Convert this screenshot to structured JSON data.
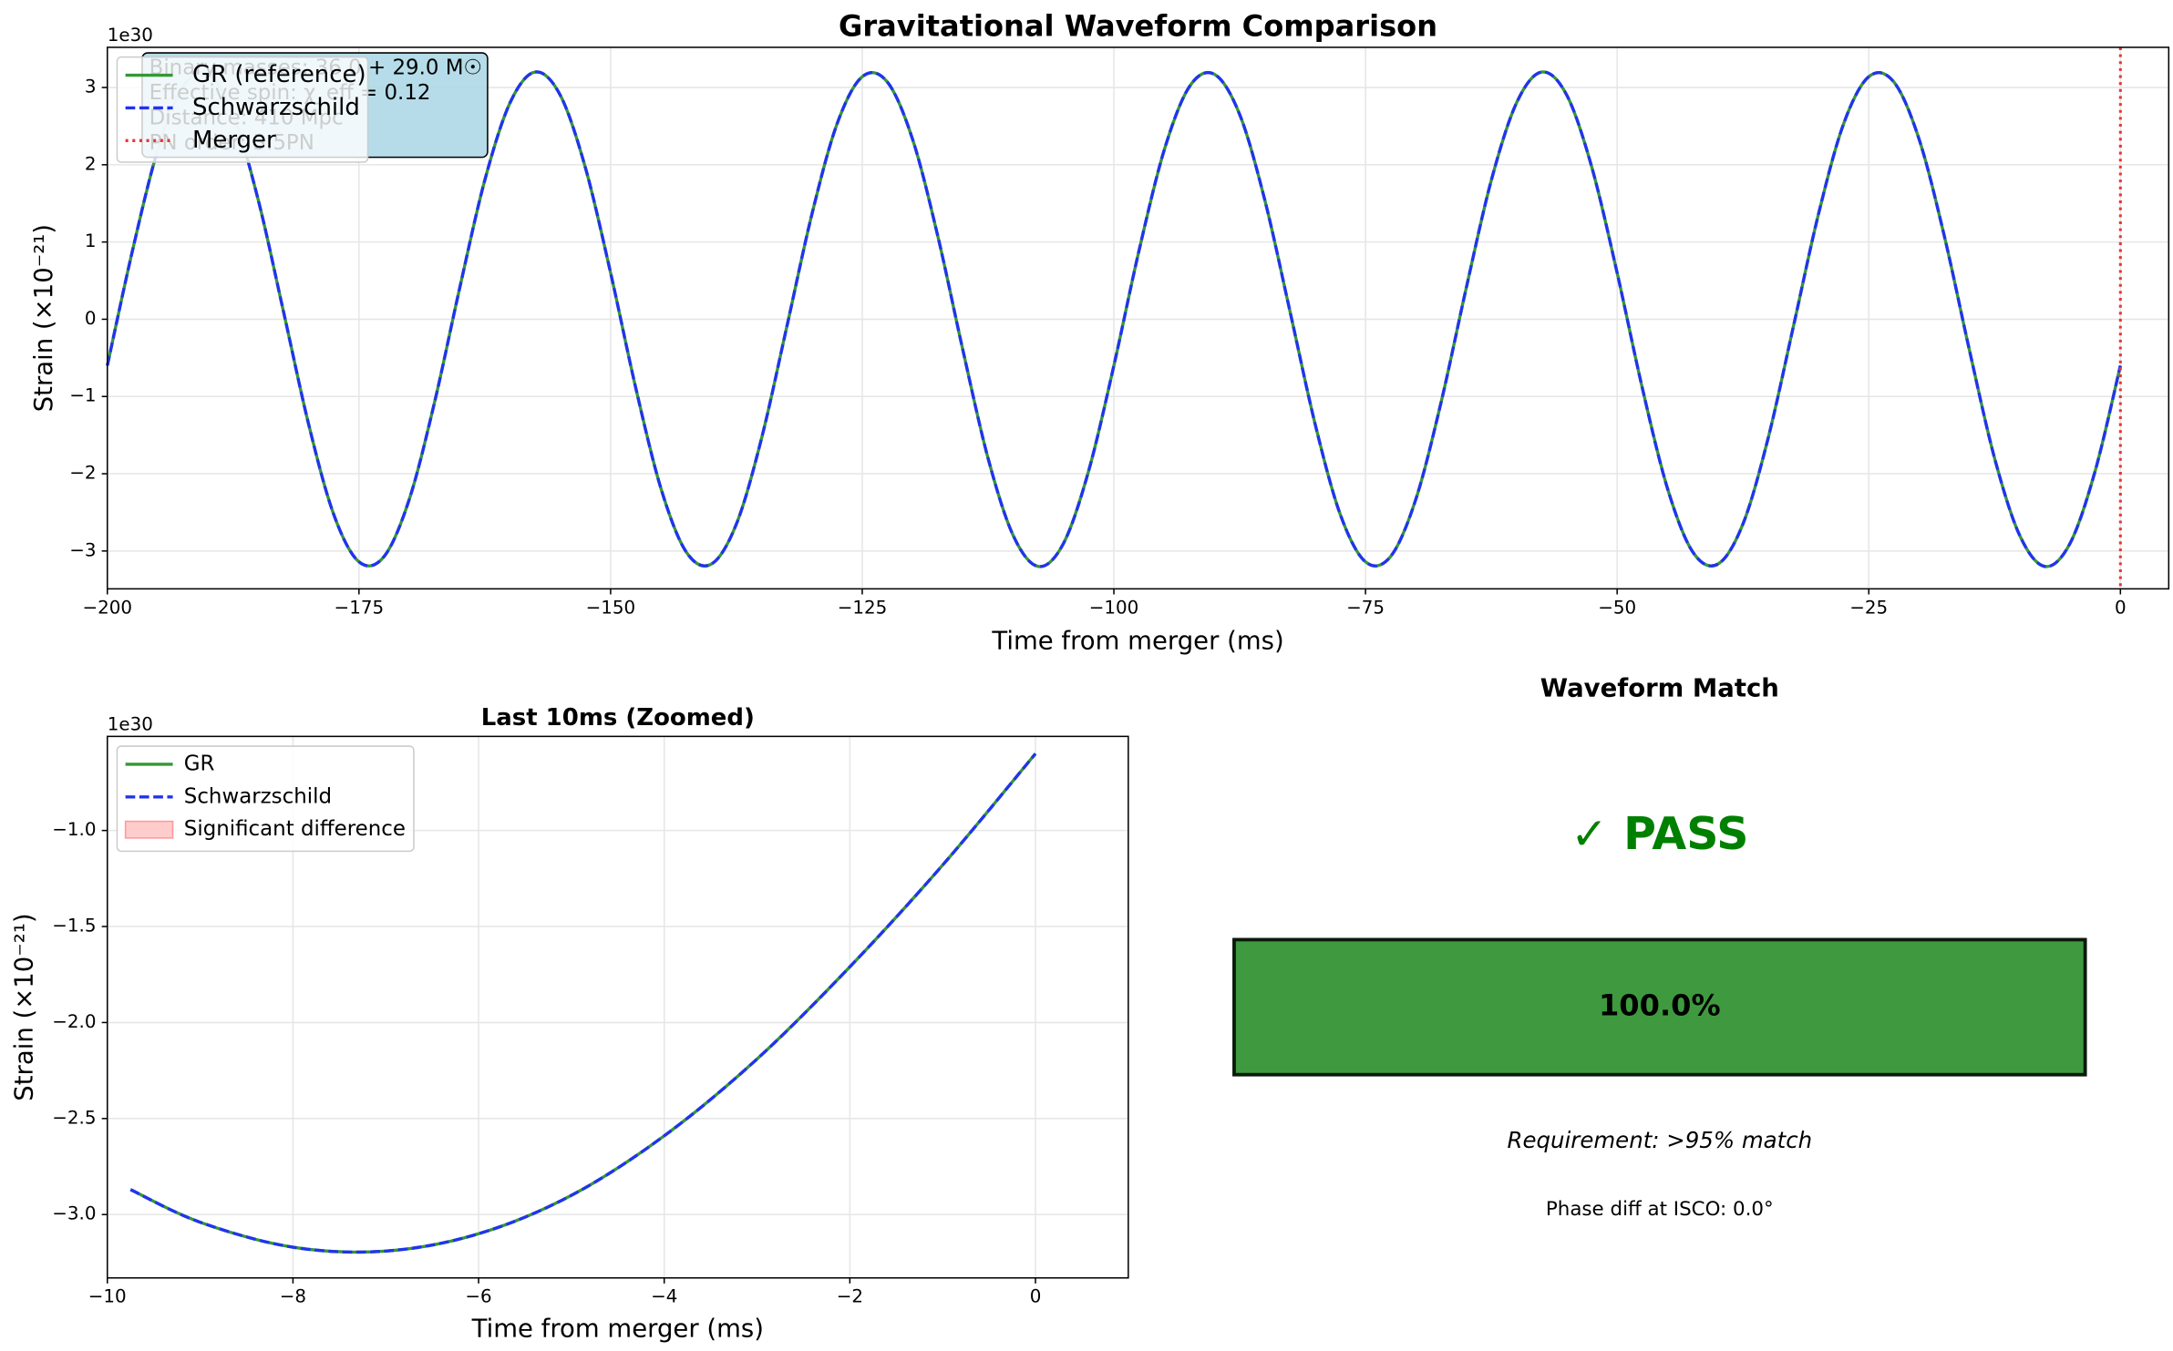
{
  "chart_data": [
    {
      "type": "line",
      "title": "Gravitational Waveform Comparison",
      "xlabel": "Time from merger (ms)",
      "ylabel": "Strain (×10⁻²¹)",
      "offset_text": "1e30",
      "x": [
        -200,
        -197.5,
        -195,
        -192.5,
        -190,
        -187.5,
        -185,
        -182.5,
        -180,
        -177.5,
        -175,
        -172.5,
        -170,
        -167.5,
        -165,
        -162.5,
        -160,
        -157.5,
        -155,
        -152.5,
        -150,
        -147.5,
        -145,
        -142.5,
        -140,
        -137.5,
        -135,
        -132.5,
        -130,
        -127.5,
        -125,
        -122.5,
        -120,
        -117.5,
        -115,
        -112.5,
        -110,
        -107.5,
        -105,
        -102.5,
        -100,
        -97.5,
        -95,
        -92.5,
        -90,
        -87.5,
        -85,
        -82.5,
        -80,
        -77.5,
        -75,
        -72.5,
        -70,
        -67.5,
        -65,
        -62.5,
        -60,
        -57.5,
        -55,
        -52.5,
        -50,
        -47.5,
        -45,
        -42.5,
        -40,
        -37.5,
        -35,
        -32.5,
        -30,
        -27.5,
        -25,
        -22.5,
        -20,
        -17.5,
        -15,
        -12.5,
        -10,
        -7.5,
        -5,
        -2.5,
        0
      ],
      "series": [
        {
          "name": "GR (reference)",
          "color": "#339933",
          "line_style": "solid",
          "values": [
            -0.6,
            0.89,
            2.19,
            3.01,
            3.17,
            2.65,
            1.54,
            0.1,
            -1.36,
            -2.53,
            -3.14,
            -3.07,
            -2.33,
            -1.08,
            0.4,
            1.8,
            2.8,
            3.2,
            2.9,
            1.96,
            0.6,
            -0.89,
            -2.19,
            -3.01,
            -3.17,
            -2.65,
            -1.54,
            -0.1,
            1.36,
            2.53,
            3.14,
            3.07,
            2.33,
            1.08,
            -0.4,
            -1.8,
            -2.8,
            -3.2,
            -2.9,
            -1.96,
            -0.6,
            0.89,
            2.19,
            3.01,
            3.17,
            2.65,
            1.54,
            0.1,
            -1.36,
            -2.53,
            -3.14,
            -3.07,
            -2.33,
            -1.08,
            0.4,
            1.8,
            2.8,
            3.2,
            2.9,
            1.96,
            0.6,
            -0.89,
            -2.19,
            -3.01,
            -3.17,
            -2.65,
            -1.54,
            -0.1,
            1.36,
            2.53,
            3.14,
            3.07,
            2.33,
            1.08,
            -0.4,
            -1.8,
            -2.8,
            -3.2,
            -2.9,
            -1.96,
            -0.6
          ]
        },
        {
          "name": "Schwarzschild",
          "color": "#2233ee",
          "line_style": "dashed",
          "values": [
            -0.6,
            0.89,
            2.19,
            3.01,
            3.17,
            2.65,
            1.54,
            0.1,
            -1.36,
            -2.53,
            -3.14,
            -3.07,
            -2.33,
            -1.08,
            0.4,
            1.8,
            2.8,
            3.2,
            2.9,
            1.96,
            0.6,
            -0.89,
            -2.19,
            -3.01,
            -3.17,
            -2.65,
            -1.54,
            -0.1,
            1.36,
            2.53,
            3.14,
            3.07,
            2.33,
            1.08,
            -0.4,
            -1.8,
            -2.8,
            -3.2,
            -2.9,
            -1.96,
            -0.6,
            0.89,
            2.19,
            3.01,
            3.17,
            2.65,
            1.54,
            0.1,
            -1.36,
            -2.53,
            -3.14,
            -3.07,
            -2.33,
            -1.08,
            0.4,
            1.8,
            2.8,
            3.2,
            2.9,
            1.96,
            0.6,
            -0.89,
            -2.19,
            -3.01,
            -3.17,
            -2.65,
            -1.54,
            -0.1,
            1.36,
            2.53,
            3.14,
            3.07,
            2.33,
            1.08,
            -0.4,
            -1.8,
            -2.8,
            -3.2,
            -2.9,
            -1.96,
            -0.6
          ]
        }
      ],
      "vlines": [
        {
          "name": "Merger",
          "x": 0,
          "color": "#ee3333",
          "line_style": "dotted"
        }
      ],
      "annotation": [
        "Binary masses: 36.0 + 29.0 M☉",
        "Effective spin: χ_eff = 0.12",
        "Distance: 410 Mpc",
        "PN order: 3.5PN"
      ],
      "xlim": [
        -200,
        4.8
      ],
      "ylim": [
        -3.49,
        3.52
      ],
      "xticks": [
        {
          "value": -200,
          "label": "−200"
        },
        {
          "value": -175,
          "label": "−175"
        },
        {
          "value": -150,
          "label": "−150"
        },
        {
          "value": -125,
          "label": "−125"
        },
        {
          "value": -100,
          "label": "−100"
        },
        {
          "value": -75,
          "label": "−75"
        },
        {
          "value": -50,
          "label": "−50"
        },
        {
          "value": -25,
          "label": "−25"
        },
        0
      ],
      "yticks": [
        {
          "value": -3,
          "label": "−3"
        },
        {
          "value": -2,
          "label": "−2"
        },
        {
          "value": -1,
          "label": "−1"
        },
        0,
        1,
        2,
        3
      ],
      "grid": true,
      "legend": "upper left"
    },
    {
      "type": "line",
      "title": "Last 10ms (Zoomed)",
      "xlabel": "Time from merger (ms)",
      "ylabel": "Strain (×10⁻²¹)",
      "offset_text": "1e30",
      "x": [
        -9.75,
        -9,
        -8,
        -7,
        -6,
        -5,
        -4,
        -3,
        -2,
        -1,
        0
      ],
      "series": [
        {
          "name": "GR",
          "color": "#339933",
          "line_style": "solid",
          "values": [
            -2.87,
            -3.04,
            -3.17,
            -3.19,
            -3.1,
            -2.9,
            -2.59,
            -2.19,
            -1.71,
            -1.18,
            -0.6
          ]
        },
        {
          "name": "Schwarzschild",
          "color": "#2233ee",
          "line_style": "dashed",
          "values": [
            -2.87,
            -3.04,
            -3.17,
            -3.19,
            -3.1,
            -2.9,
            -2.59,
            -2.19,
            -1.71,
            -1.18,
            -0.6
          ]
        }
      ],
      "legend_patches": [
        {
          "name": "Significant difference",
          "color": "#ffcccc"
        }
      ],
      "xlim": [
        -10,
        1
      ],
      "ylim": [
        -3.33,
        -0.51
      ],
      "xticks": [
        {
          "value": -10,
          "label": "−10"
        },
        {
          "value": -8,
          "label": "−8"
        },
        {
          "value": -6,
          "label": "−6"
        },
        {
          "value": -4,
          "label": "−4"
        },
        {
          "value": -2,
          "label": "−2"
        },
        0
      ],
      "yticks": [
        {
          "value": -3,
          "label": "−3.0"
        },
        {
          "value": -2.5,
          "label": "−2.5"
        },
        {
          "value": -2,
          "label": "−2.0"
        },
        {
          "value": -1.5,
          "label": "−1.5"
        },
        {
          "value": -1,
          "label": "−1.0"
        }
      ],
      "grid": true,
      "legend": "upper left"
    },
    {
      "type": "gauge",
      "title": "Waveform Match",
      "status": "✓ PASS",
      "value": 100,
      "value_label": "100.0%",
      "xlim": [
        0,
        100
      ],
      "color": "#3f9a3f",
      "status_color": "#008000",
      "notes": [
        "Requirement: >95% match",
        "Phase diff at ISCO: 0.0°"
      ]
    }
  ]
}
